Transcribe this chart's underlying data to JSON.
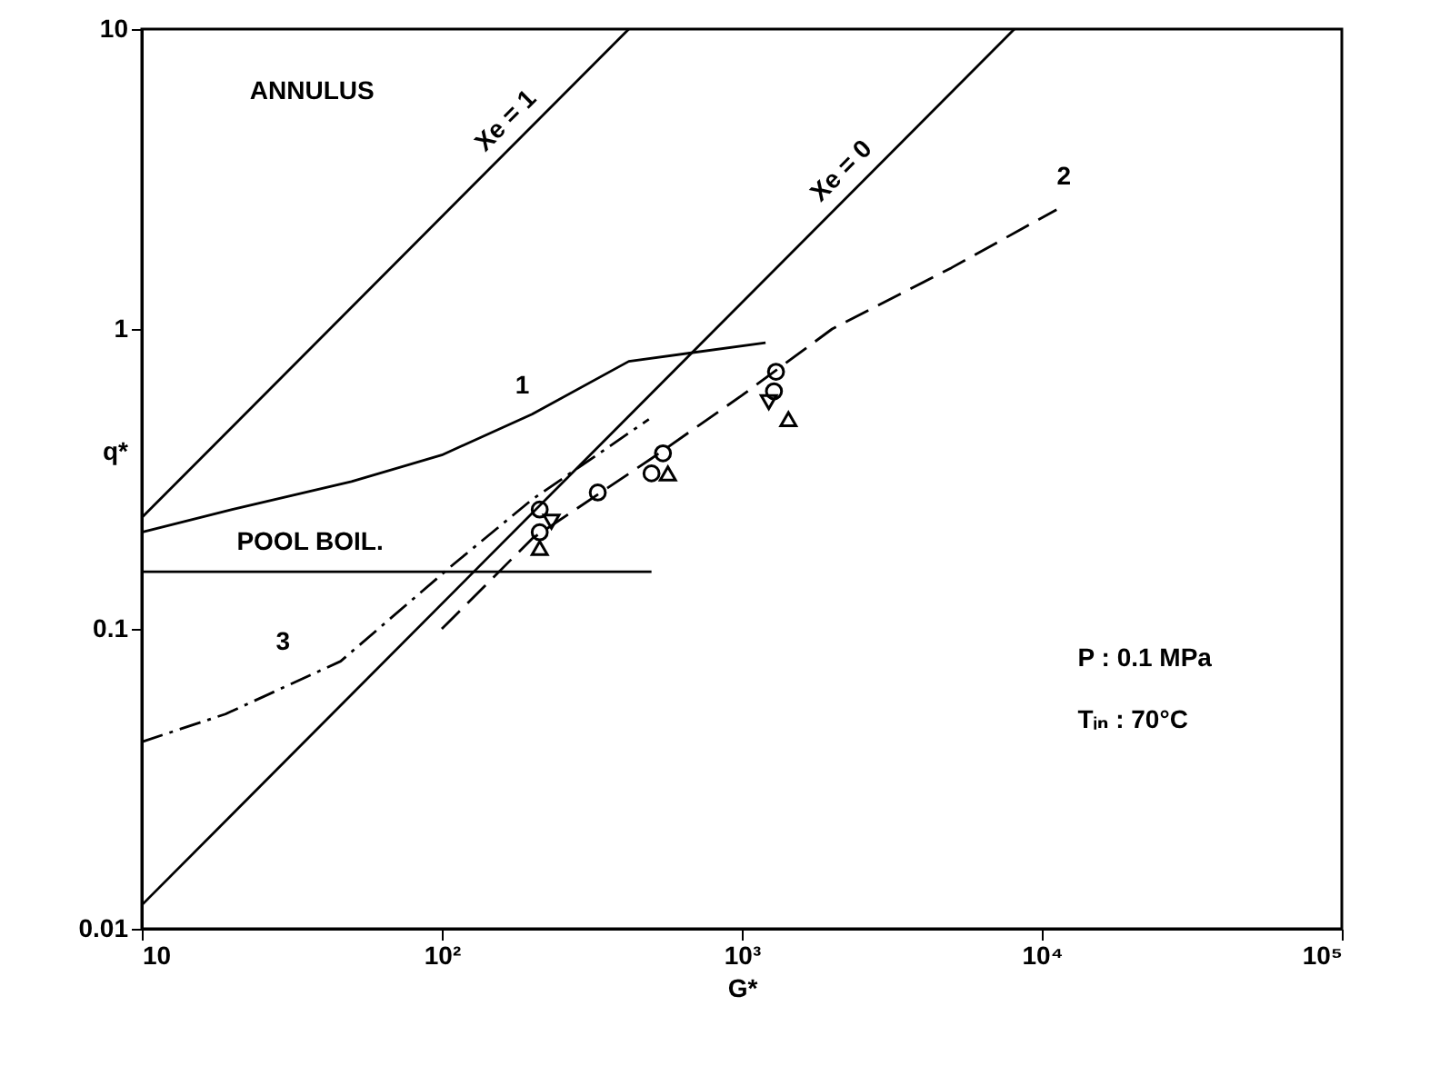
{
  "chart_data": {
    "type": "line",
    "xlabel": "G*",
    "ylabel": "q*",
    "log": "xy",
    "grid": false,
    "xlim": [
      10,
      100000
    ],
    "ylim": [
      0.01,
      10
    ],
    "xticks": [
      10,
      {
        "value": 100,
        "label": "10²"
      },
      {
        "value": 1000,
        "label": "10³"
      },
      {
        "value": 10000,
        "label": "10⁴"
      },
      {
        "value": 100000,
        "label": "10⁵"
      }
    ],
    "yticks": [
      0.01,
      0.1,
      1,
      10
    ],
    "series": [
      {
        "name": "Xe = 1",
        "color": "#000000",
        "line_style": "solid",
        "x": [
          10,
          420
        ],
        "values": [
          0.235,
          10
        ]
      },
      {
        "name": "Xe = 0",
        "color": "#000000",
        "line_style": "solid",
        "x": [
          10,
          8100
        ],
        "values": [
          0.012,
          10
        ]
      },
      {
        "name": "POOL BOIL.",
        "color": "#000000",
        "line_style": "solid",
        "x": [
          10,
          500
        ],
        "values": [
          0.155,
          0.155
        ]
      },
      {
        "name": "1",
        "color": "#000000",
        "line_style": "solid",
        "x": [
          10,
          20,
          50,
          100,
          200,
          420,
          1200
        ],
        "values": [
          0.21,
          0.25,
          0.31,
          0.38,
          0.52,
          0.78,
          0.9
        ]
      },
      {
        "name": "2",
        "color": "#000000",
        "line_style": "dashed",
        "x": [
          100,
          200,
          500,
          1000,
          2000,
          5000,
          11200
        ],
        "values": [
          0.1,
          0.2,
          0.37,
          0.6,
          1.0,
          1.6,
          2.5
        ]
      },
      {
        "name": "3",
        "color": "#000000",
        "line_style": "dashdot",
        "x": [
          10,
          19,
          46,
          110,
          200,
          490
        ],
        "values": [
          0.042,
          0.052,
          0.078,
          0.165,
          0.27,
          0.5
        ]
      },
      {
        "type": "scatter",
        "color": "#000000",
        "marker": "circle",
        "x": [
          212,
          212,
          331,
          500,
          546,
          1280,
          1300
        ],
        "values": [
          0.25,
          0.21,
          0.285,
          0.33,
          0.385,
          0.62,
          0.72
        ]
      },
      {
        "type": "scatter",
        "color": "#000000",
        "marker": "triangle",
        "x": [
          212,
          567,
          1430
        ],
        "values": [
          0.186,
          0.33,
          0.5
        ]
      },
      {
        "type": "scatter",
        "color": "#000000",
        "marker": "triangle-down",
        "x": [
          232,
          1230
        ],
        "values": [
          0.228,
          0.57
        ]
      }
    ],
    "annotations": [
      "ANNULUS",
      "P : 0.1 MPa",
      "Tᵢₙ : 70°C"
    ]
  }
}
